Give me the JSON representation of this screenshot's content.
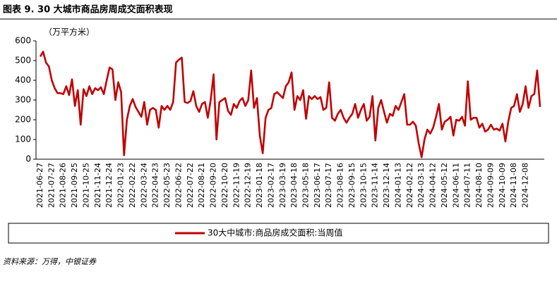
{
  "title": "图表 9. 30 大城市商品房周成交面积表现",
  "source": "资料来源：万得，中银证券",
  "chart_data": {
    "type": "line",
    "y_label": "（万平方米）",
    "categories": [
      "2021-06-27",
      null,
      null,
      null,
      "2021-07-27",
      null,
      null,
      null,
      "2021-08-26",
      null,
      null,
      null,
      "2021-09-25",
      null,
      null,
      null,
      "2021-10-25",
      null,
      null,
      null,
      "2021-11-24",
      null,
      null,
      null,
      "2021-12-24",
      null,
      null,
      null,
      "2022-01-23",
      null,
      null,
      null,
      "2022-02-22",
      null,
      null,
      null,
      "2022-03-24",
      null,
      null,
      null,
      "2022-04-23",
      null,
      null,
      null,
      "2022-05-23",
      null,
      null,
      null,
      "2022-06-22",
      null,
      null,
      null,
      "2022-07-22",
      null,
      null,
      null,
      "2022-08-21",
      null,
      null,
      null,
      "2022-09-20",
      null,
      null,
      null,
      "2022-10-20",
      null,
      null,
      null,
      "2022-11-19",
      null,
      null,
      null,
      "2022-12-19",
      null,
      null,
      null,
      "2023-01-18",
      null,
      null,
      null,
      "2023-02-17",
      null,
      null,
      null,
      "2023-03-19",
      null,
      null,
      null,
      "2023-04-18",
      null,
      null,
      null,
      "2023-05-18",
      null,
      null,
      null,
      "2023-06-17",
      null,
      null,
      null,
      "2023-07-17",
      null,
      null,
      null,
      "2023-08-16",
      null,
      null,
      null,
      "2023-09-15",
      null,
      null,
      null,
      "2023-10-15",
      null,
      null,
      null,
      "2023-11-14",
      null,
      null,
      null,
      "2023-12-14",
      null,
      null,
      null,
      "2024-01-13",
      null,
      null,
      null,
      "2024-02-12",
      null,
      null,
      null,
      "2024-03-13",
      null,
      null,
      null,
      "2024-04-12",
      null,
      null,
      null,
      "2024-05-12",
      null,
      null,
      null,
      "2024-06-11",
      null,
      null,
      null,
      "2024-07-11",
      null,
      null,
      null,
      "2024-08-10",
      null,
      null,
      null,
      "2024-09-09",
      null,
      null,
      null,
      "2024-10-09",
      null,
      null,
      null,
      "2024-11-08",
      null,
      null,
      null,
      "2024-12-08",
      null,
      null,
      null,
      null,
      null
    ],
    "series": [
      {
        "name": "30大中城市:商品房成交面积:当周值",
        "color": "#c00000",
        "values": [
          520,
          545,
          490,
          470,
          400,
          360,
          335,
          335,
          330,
          370,
          325,
          405,
          270,
          350,
          175,
          355,
          320,
          370,
          330,
          360,
          350,
          365,
          330,
          400,
          465,
          455,
          300,
          390,
          340,
          20,
          200,
          270,
          305,
          265,
          240,
          215,
          290,
          175,
          250,
          260,
          250,
          160,
          270,
          250,
          270,
          250,
          290,
          490,
          505,
          515,
          290,
          285,
          295,
          345,
          270,
          240,
          280,
          290,
          210,
          300,
          430,
          100,
          290,
          300,
          310,
          245,
          225,
          280,
          260,
          295,
          310,
          270,
          300,
          450,
          260,
          310,
          120,
          30,
          210,
          250,
          260,
          330,
          340,
          325,
          310,
          370,
          390,
          440,
          250,
          320,
          300,
          350,
          205,
          320,
          305,
          320,
          305,
          315,
          250,
          260,
          390,
          210,
          195,
          230,
          250,
          210,
          185,
          210,
          230,
          280,
          210,
          250,
          280,
          195,
          215,
          320,
          95,
          260,
          300,
          240,
          185,
          230,
          220,
          270,
          250,
          290,
          330,
          175,
          175,
          190,
          170,
          80,
          10,
          100,
          150,
          130,
          160,
          215,
          280,
          150,
          190,
          200,
          215,
          120,
          200,
          195,
          215,
          170,
          395,
          200,
          210,
          210,
          160,
          180,
          140,
          150,
          175,
          150,
          155,
          145,
          180,
          90,
          190,
          260,
          270,
          330,
          240,
          280,
          370,
          260,
          320,
          330,
          450,
          265
        ]
      }
    ],
    "ylim": [
      0,
      600
    ],
    "yticks": [
      0,
      100,
      200,
      300,
      400,
      500,
      600
    ]
  }
}
